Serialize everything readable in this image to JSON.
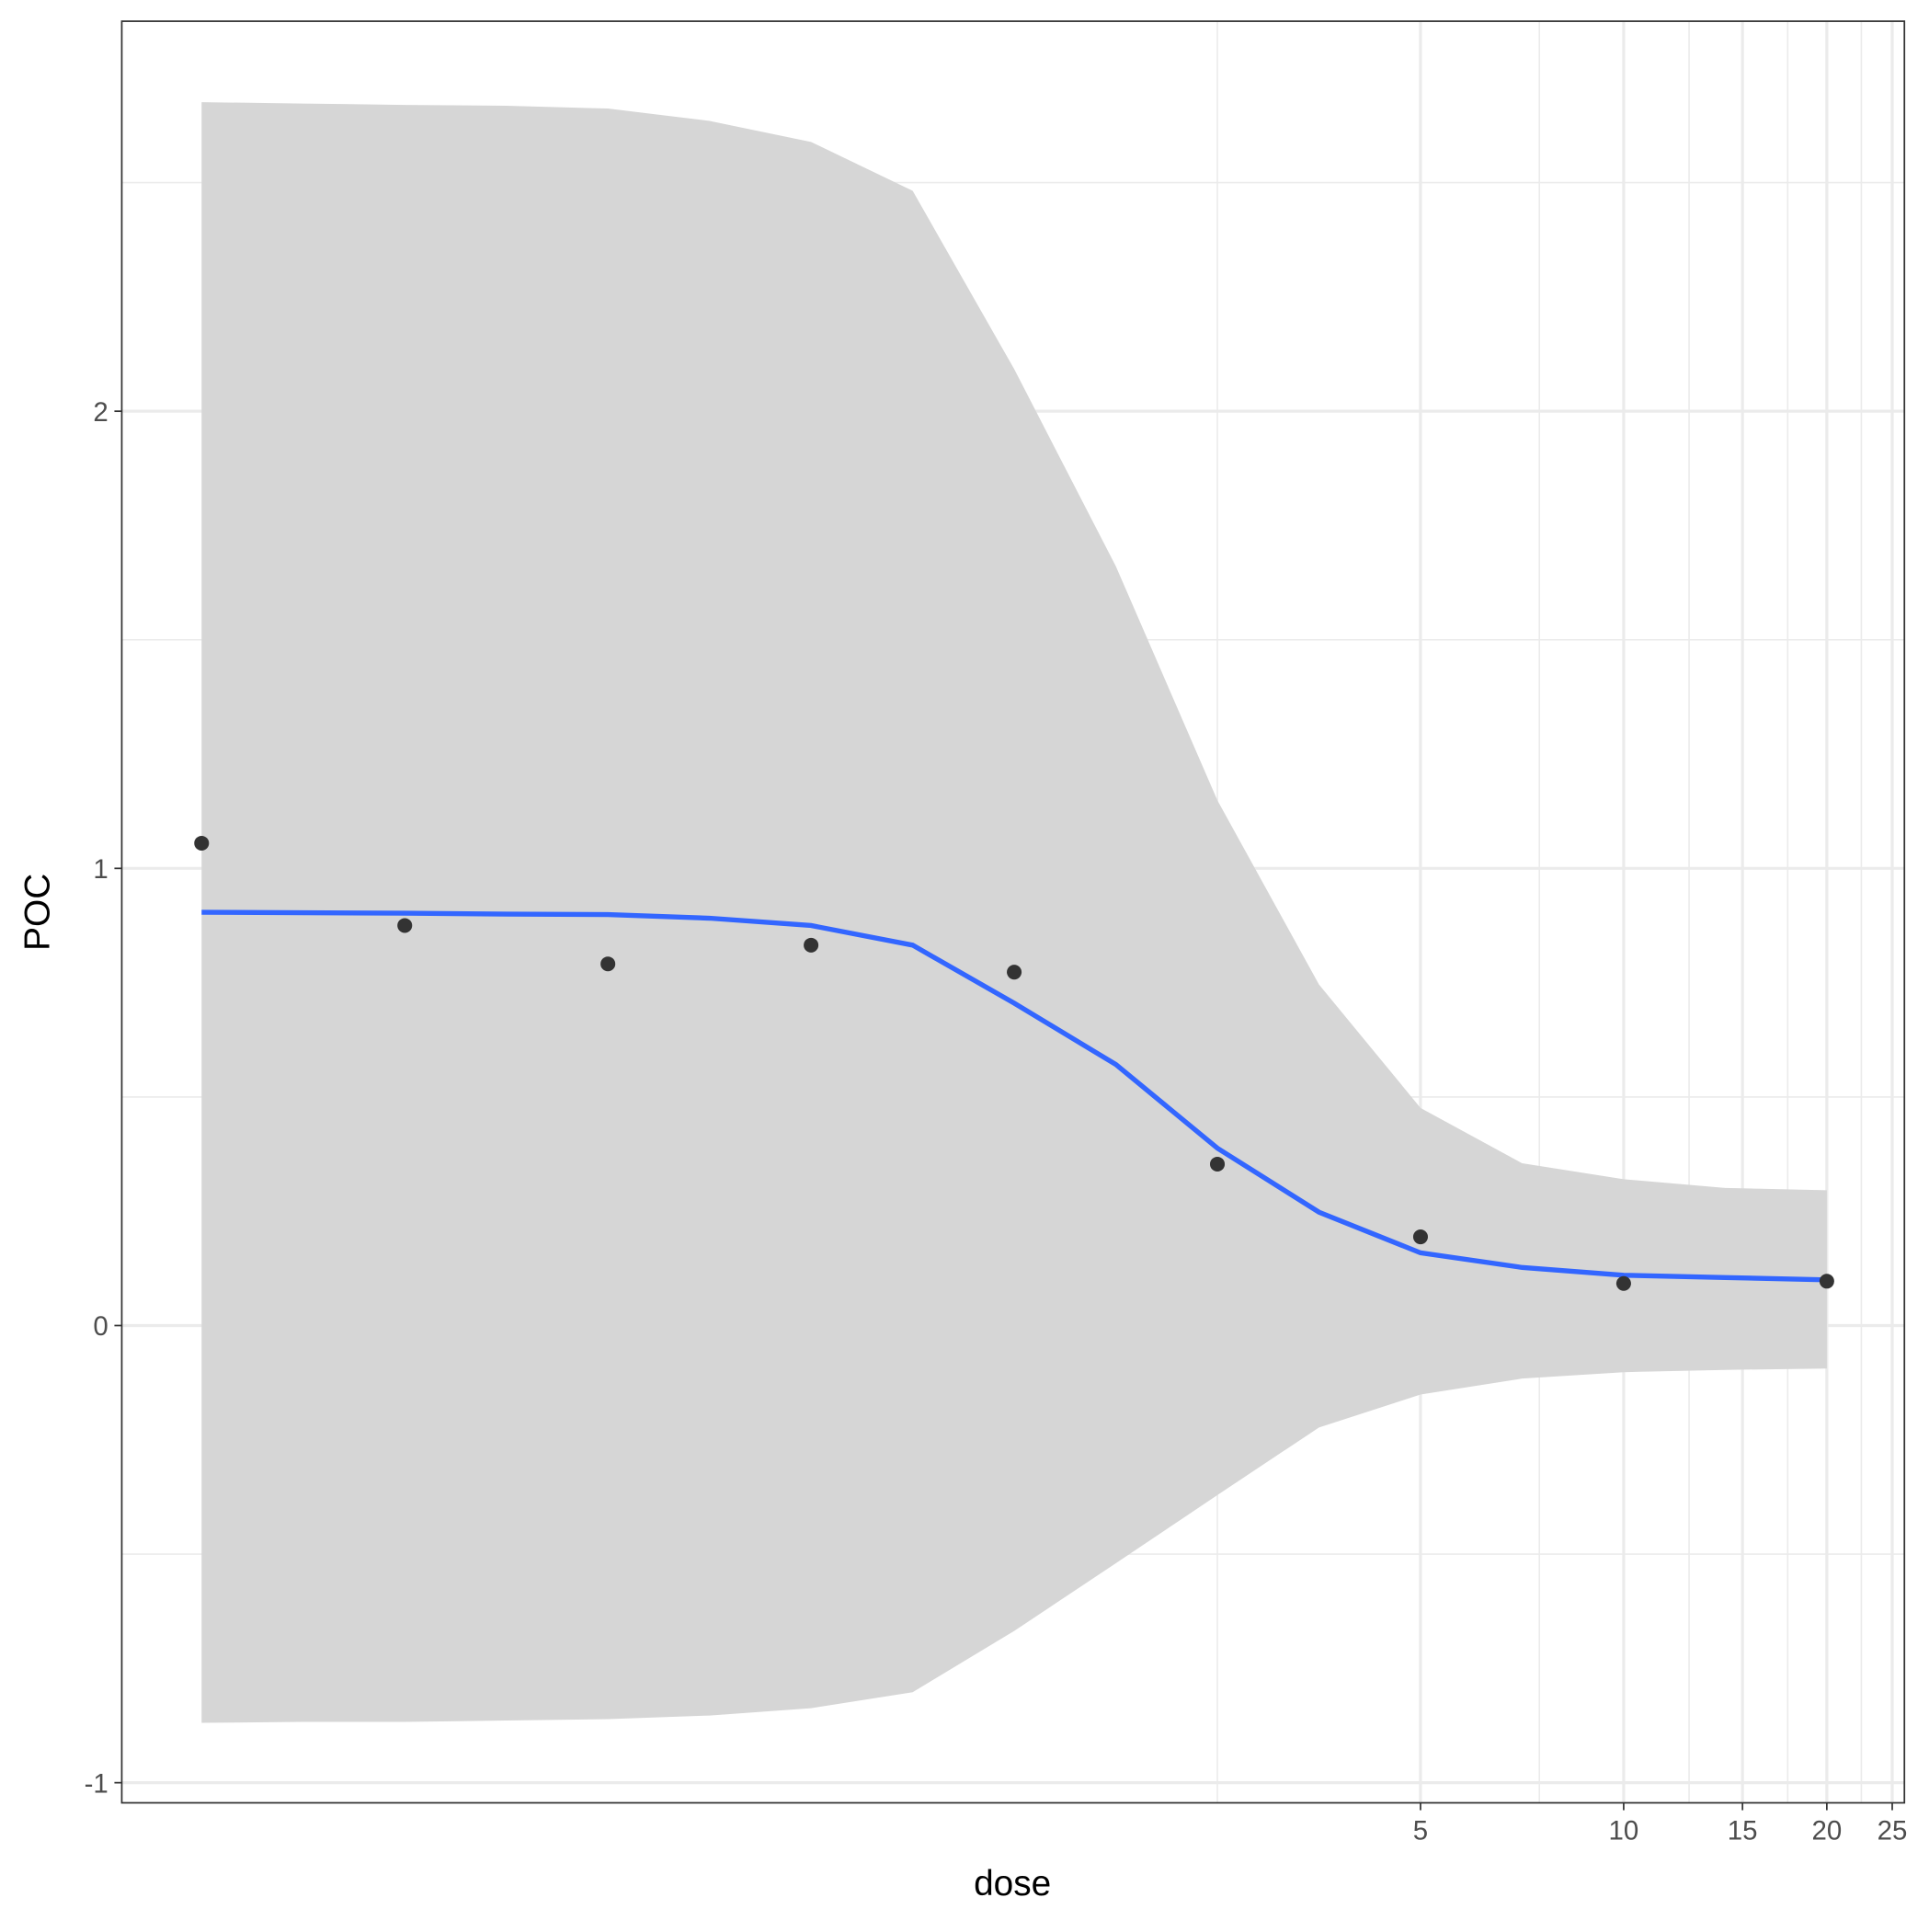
{
  "chart_data": {
    "type": "scatter",
    "x_label": "dose",
    "y_label": "POC",
    "xscale": "log",
    "xlim": [
      0.0595,
      26.06
    ],
    "ylim": [
      -1.044,
      2.853
    ],
    "xticks": [
      5,
      10,
      15,
      20,
      25
    ],
    "xminor": [
      2.5,
      7.5,
      12.5,
      17.5,
      22.5
    ],
    "yticks": [
      -1,
      0,
      1,
      2
    ],
    "yminor": [
      -0.5,
      0.5,
      1.5,
      2.5
    ],
    "grid": true,
    "points": {
      "color": "#333333",
      "x": [
        0.078125,
        0.15625,
        0.3125,
        0.625,
        1.25,
        2.5,
        5,
        10,
        20
      ],
      "y": [
        1.055,
        0.875,
        0.791,
        0.832,
        0.773,
        0.353,
        0.194,
        0.092,
        0.097
      ]
    },
    "fit": {
      "color": "#3366ff",
      "ribbon_color": "#d6d6d6",
      "x": [
        0.078125,
        0.1105,
        0.15625,
        0.221,
        0.3125,
        0.442,
        0.625,
        0.884,
        1.25,
        1.768,
        2.5,
        3.536,
        5,
        7.071,
        10,
        14.142,
        20
      ],
      "y": [
        0.904,
        0.903,
        0.902,
        0.9,
        0.899,
        0.891,
        0.875,
        0.832,
        0.705,
        0.571,
        0.388,
        0.248,
        0.159,
        0.127,
        0.11,
        0.105,
        0.1
      ],
      "ymax": [
        2.676,
        2.673,
        2.67,
        2.668,
        2.662,
        2.635,
        2.589,
        2.482,
        2.092,
        1.661,
        1.149,
        0.746,
        0.476,
        0.355,
        0.32,
        0.301,
        0.296
      ],
      "ymin": [
        -0.869,
        -0.867,
        -0.867,
        -0.864,
        -0.861,
        -0.853,
        -0.837,
        -0.802,
        -0.668,
        -0.52,
        -0.371,
        -0.223,
        -0.151,
        -0.116,
        -0.102,
        -0.097,
        -0.094
      ]
    }
  }
}
